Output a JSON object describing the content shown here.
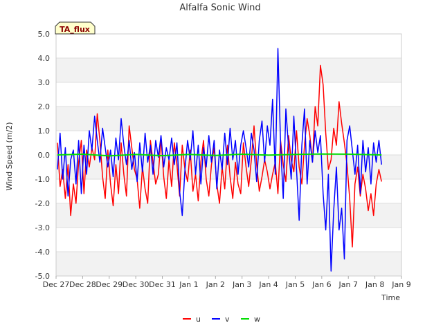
{
  "chart_data": {
    "type": "line",
    "title": "Alfalfa Sonic Wind",
    "badge": "TA_flux",
    "xlabel": "Time",
    "ylabel": "Wind Speed (m/2)",
    "ylim": [
      -5.0,
      5.0
    ],
    "xlim": [
      0,
      13
    ],
    "y_ticks": [
      {
        "value": 5.0,
        "label": "5.0"
      },
      {
        "value": 4.0,
        "label": "4.0"
      },
      {
        "value": 3.0,
        "label": "3.0"
      },
      {
        "value": 2.0,
        "label": "2.0"
      },
      {
        "value": 1.0,
        "label": "1.0"
      },
      {
        "value": 0.0,
        "label": "0.0"
      },
      {
        "value": -1.0,
        "label": "-1.0"
      },
      {
        "value": -2.0,
        "label": "-2.0"
      },
      {
        "value": -3.0,
        "label": "-3.0"
      },
      {
        "value": -4.0,
        "label": "-4.0"
      },
      {
        "value": -5.0,
        "label": "-5.0"
      }
    ],
    "x_ticks": [
      {
        "value": 0,
        "label": "Dec 27"
      },
      {
        "value": 1,
        "label": "Dec 28"
      },
      {
        "value": 2,
        "label": "Dec 29"
      },
      {
        "value": 3,
        "label": "Dec 30"
      },
      {
        "value": 4,
        "label": "Dec 31"
      },
      {
        "value": 5,
        "label": "Jan 1"
      },
      {
        "value": 6,
        "label": "Jan 2"
      },
      {
        "value": 7,
        "label": "Jan 3"
      },
      {
        "value": 8,
        "label": "Jan 4"
      },
      {
        "value": 9,
        "label": "Jan 5"
      },
      {
        "value": 10,
        "label": "Jan 6"
      },
      {
        "value": 11,
        "label": "Jan 7"
      },
      {
        "value": 12,
        "label": "Jan 8"
      },
      {
        "value": 13,
        "label": "Jan 9"
      }
    ],
    "legend": "bottom-center",
    "series": [
      {
        "name": "u",
        "color": "#ff0000",
        "x": [
          0.05,
          0.15,
          0.25,
          0.35,
          0.45,
          0.55,
          0.65,
          0.75,
          0.85,
          0.95,
          1.05,
          1.15,
          1.25,
          1.35,
          1.45,
          1.55,
          1.65,
          1.75,
          1.85,
          1.95,
          2.05,
          2.15,
          2.25,
          2.35,
          2.45,
          2.55,
          2.65,
          2.75,
          2.85,
          2.95,
          3.05,
          3.15,
          3.25,
          3.35,
          3.45,
          3.55,
          3.65,
          3.75,
          3.85,
          3.95,
          4.05,
          4.15,
          4.25,
          4.35,
          4.45,
          4.55,
          4.65,
          4.75,
          4.85,
          4.95,
          5.05,
          5.15,
          5.25,
          5.35,
          5.45,
          5.55,
          5.65,
          5.75,
          5.85,
          5.95,
          6.05,
          6.15,
          6.25,
          6.35,
          6.45,
          6.55,
          6.65,
          6.75,
          6.85,
          6.95,
          7.05,
          7.15,
          7.25,
          7.35,
          7.45,
          7.55,
          7.65,
          7.75,
          7.85,
          7.95,
          8.05,
          8.15,
          8.25,
          8.35,
          8.45,
          8.55,
          8.65,
          8.75,
          8.85,
          8.95,
          9.05,
          9.15,
          9.25,
          9.35,
          9.45,
          9.55,
          9.65,
          9.75,
          9.85,
          9.95,
          10.05,
          10.15,
          10.25,
          10.35,
          10.45,
          10.55,
          10.65,
          10.75,
          10.85,
          10.95,
          11.05,
          11.15,
          11.25,
          11.35,
          11.45,
          11.55,
          11.65,
          11.75,
          11.85,
          11.95,
          12.05,
          12.15,
          12.25
        ],
        "values": [
          0.5,
          -1.3,
          -0.6,
          -1.8,
          -0.4,
          -2.5,
          -1.2,
          -2.0,
          -0.3,
          0.6,
          -1.6,
          0.2,
          -0.5,
          0.3,
          -0.2,
          1.7,
          0.6,
          -0.9,
          -1.8,
          0.2,
          -1.2,
          -2.1,
          -0.4,
          -1.6,
          0.5,
          -0.8,
          -1.7,
          1.2,
          0.3,
          -0.6,
          -1.0,
          -2.2,
          -0.5,
          -1.4,
          -2.0,
          0.6,
          -0.3,
          -1.2,
          -0.8,
          0.7,
          -0.9,
          -1.8,
          -0.2,
          -1.3,
          0.5,
          -0.4,
          -1.7,
          0.4,
          -0.6,
          -1.1,
          0.2,
          -1.5,
          -0.8,
          -1.9,
          -0.3,
          0.6,
          -1.0,
          -1.7,
          -0.4,
          0.3,
          -1.2,
          -2.0,
          -0.5,
          -1.4,
          0.4,
          -0.9,
          -1.8,
          -0.3,
          -1.2,
          -1.6,
          0.5,
          -0.5,
          -1.3,
          -0.2,
          1.2,
          -0.4,
          -1.5,
          -0.9,
          -0.2,
          -0.7,
          -1.4,
          -0.8,
          -0.3,
          -1.6,
          0.6,
          -0.4,
          -1.1,
          0.8,
          -0.2,
          -0.7,
          1.0,
          -0.5,
          -1.2,
          0.4,
          1.5,
          0.8,
          -0.3,
          2.0,
          1.2,
          3.7,
          2.9,
          0.9,
          -0.6,
          -0.2,
          1.1,
          0.4,
          2.2,
          1.3,
          0.5,
          -0.4,
          -1.8,
          -3.8,
          -1.2,
          -0.5,
          -1.7,
          -0.8,
          -1.4,
          -2.3,
          -1.6,
          -2.5,
          -1.2,
          -0.6,
          -1.1
        ]
      },
      {
        "name": "v",
        "color": "#0000ff",
        "x": [
          0.05,
          0.15,
          0.25,
          0.35,
          0.45,
          0.55,
          0.65,
          0.75,
          0.85,
          0.95,
          1.05,
          1.15,
          1.25,
          1.35,
          1.45,
          1.55,
          1.65,
          1.75,
          1.85,
          1.95,
          2.05,
          2.15,
          2.25,
          2.35,
          2.45,
          2.55,
          2.65,
          2.75,
          2.85,
          2.95,
          3.05,
          3.15,
          3.25,
          3.35,
          3.45,
          3.55,
          3.65,
          3.75,
          3.85,
          3.95,
          4.05,
          4.15,
          4.25,
          4.35,
          4.45,
          4.55,
          4.65,
          4.75,
          4.85,
          4.95,
          5.05,
          5.15,
          5.25,
          5.35,
          5.45,
          5.55,
          5.65,
          5.75,
          5.85,
          5.95,
          6.05,
          6.15,
          6.25,
          6.35,
          6.45,
          6.55,
          6.65,
          6.75,
          6.85,
          6.95,
          7.05,
          7.15,
          7.25,
          7.35,
          7.45,
          7.55,
          7.65,
          7.75,
          7.85,
          7.95,
          8.05,
          8.15,
          8.25,
          8.35,
          8.45,
          8.55,
          8.65,
          8.75,
          8.85,
          8.95,
          9.05,
          9.15,
          9.25,
          9.35,
          9.45,
          9.55,
          9.65,
          9.75,
          9.85,
          9.95,
          10.05,
          10.15,
          10.25,
          10.35,
          10.45,
          10.55,
          10.65,
          10.75,
          10.85,
          10.95,
          11.05,
          11.15,
          11.25,
          11.35,
          11.45,
          11.55,
          11.65,
          11.75,
          11.85,
          11.95,
          12.05,
          12.15,
          12.25
        ],
        "values": [
          -0.6,
          0.9,
          -1.0,
          0.3,
          -1.7,
          -0.2,
          0.2,
          -1.2,
          0.6,
          -1.6,
          0.4,
          -0.8,
          1.0,
          0.2,
          1.6,
          0.6,
          -0.3,
          1.1,
          0.3,
          -0.5,
          0.2,
          -0.9,
          0.7,
          -0.2,
          1.5,
          0.4,
          -0.4,
          0.6,
          -0.6,
          0.1,
          -1.1,
          0.5,
          -0.7,
          0.9,
          -0.3,
          0.4,
          -0.8,
          0.6,
          -0.1,
          0.8,
          -0.5,
          0.3,
          -0.2,
          0.7,
          -0.4,
          0.5,
          -1.5,
          -2.5,
          -0.6,
          0.6,
          -0.2,
          1.0,
          -0.8,
          0.4,
          -1.2,
          0.3,
          -0.5,
          0.8,
          -0.3,
          0.6,
          -1.4,
          0.2,
          -0.6,
          0.9,
          -0.4,
          1.1,
          -0.2,
          0.6,
          -0.8,
          0.4,
          1.0,
          0.3,
          -0.5,
          0.9,
          0.2,
          -1.1,
          0.6,
          1.4,
          -0.3,
          1.2,
          0.4,
          2.3,
          -0.8,
          4.4,
          0.5,
          -1.8,
          1.9,
          0.3,
          -1.0,
          1.6,
          -0.6,
          -2.7,
          0.4,
          1.9,
          -1.2,
          0.6,
          -0.3,
          1.0,
          0.1,
          0.8,
          -1.6,
          -3.1,
          -0.8,
          -4.8,
          -2.3,
          -0.5,
          -3.1,
          -2.2,
          -4.3,
          0.6,
          1.2,
          0.2,
          -0.8,
          0.4,
          -1.6,
          0.6,
          -0.7,
          0.3,
          -1.2,
          0.5,
          -0.3,
          0.6,
          -0.4
        ]
      },
      {
        "name": "w",
        "color": "#00dd00",
        "x": [
          0.05,
          1.0,
          2.0,
          3.0,
          4.0,
          5.0,
          6.0,
          7.0,
          8.0,
          9.0,
          10.0,
          11.0,
          12.25
        ],
        "values": [
          0.0,
          0.03,
          -0.04,
          0.02,
          -0.03,
          0.02,
          -0.02,
          0.03,
          -0.01,
          0.02,
          0.04,
          0.03,
          0.0
        ]
      }
    ]
  }
}
